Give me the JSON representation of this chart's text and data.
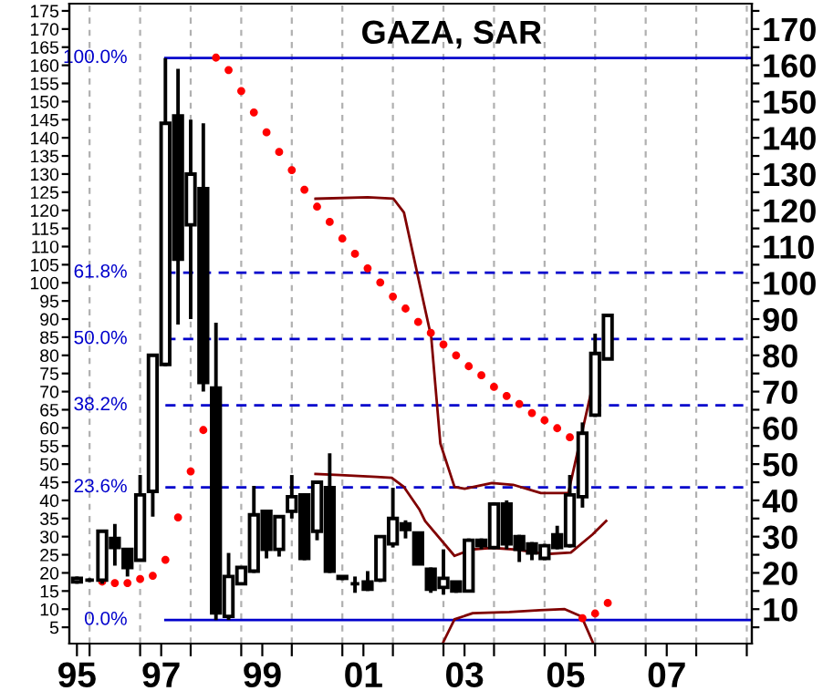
{
  "chart_data": {
    "type": "candlestick",
    "title": "GAZA, SAR",
    "x": [
      "1995-10",
      "1996-01",
      "1996-04",
      "1996-07",
      "1996-10",
      "1997-01",
      "1997-04",
      "1997-07",
      "1997-10",
      "1998-01",
      "1998-04",
      "1998-07",
      "1998-10",
      "1999-01",
      "1999-04",
      "1999-07",
      "1999-10",
      "2000-01",
      "2000-04",
      "2000-07",
      "2000-10",
      "2001-01",
      "2001-04",
      "2001-07",
      "2001-10",
      "2002-01",
      "2002-04",
      "2002-07",
      "2002-10",
      "2003-01",
      "2003-04",
      "2003-07",
      "2003-10",
      "2004-01",
      "2004-04",
      "2004-07",
      "2004-10",
      "2005-01",
      "2005-04",
      "2005-07",
      "2005-10",
      "2006-01",
      "2006-04"
    ],
    "ohlc": [
      [
        17.5,
        19,
        17,
        18.5
      ],
      [
        18,
        18.5,
        17.5,
        18
      ],
      [
        18,
        31.5,
        17,
        31.5
      ],
      [
        29.5,
        33.5,
        22,
        27
      ],
      [
        26.5,
        26.5,
        19,
        21.5
      ],
      [
        23.5,
        47,
        23.5,
        41.5
      ],
      [
        42.5,
        80,
        35.5,
        80
      ],
      [
        77.5,
        162,
        77,
        144
      ],
      [
        146,
        159,
        88.5,
        106.5
      ],
      [
        116,
        145,
        90,
        130
      ],
      [
        126,
        144,
        70,
        72.5
      ],
      [
        71,
        89,
        7,
        9
      ],
      [
        8,
        25.5,
        7,
        19
      ],
      [
        17,
        21.5,
        17,
        21.5
      ],
      [
        20.5,
        44,
        20,
        36
      ],
      [
        37,
        37,
        24,
        26.5
      ],
      [
        26.5,
        35.5,
        24.5,
        35.5
      ],
      [
        37,
        47,
        35,
        41
      ],
      [
        41.5,
        42,
        23.5,
        24
      ],
      [
        31.5,
        45.5,
        29,
        45
      ],
      [
        43.5,
        53,
        20,
        20.5
      ],
      [
        19,
        19,
        18,
        18.5
      ],
      [
        17,
        19,
        14.5,
        17
      ],
      [
        17.5,
        20.5,
        15,
        15.5
      ],
      [
        18,
        30,
        17.5,
        30
      ],
      [
        28,
        43.5,
        27,
        35
      ],
      [
        33.5,
        34.5,
        29.5,
        32
      ],
      [
        31,
        31,
        22.5,
        22.5
      ],
      [
        21,
        21.5,
        14.5,
        15.5
      ],
      [
        16,
        26.5,
        14,
        18.5
      ],
      [
        17.5,
        17.5,
        14.5,
        15
      ],
      [
        15,
        29.5,
        15,
        29
      ],
      [
        29,
        29.5,
        26.5,
        27.5
      ],
      [
        27,
        39.5,
        26.5,
        39
      ],
      [
        39,
        40,
        26.5,
        28
      ],
      [
        30,
        30.5,
        23,
        26.5
      ],
      [
        28,
        28.5,
        23.5,
        25.5
      ],
      [
        24,
        28,
        23.5,
        27.5
      ],
      [
        30.5,
        33,
        26.5,
        27
      ],
      [
        27.5,
        47,
        27,
        41.5
      ],
      [
        41,
        61.5,
        38,
        58.5
      ],
      [
        63.5,
        86,
        63,
        80.5
      ],
      [
        79,
        91,
        79,
        91
      ]
    ],
    "series": [
      {
        "type": "scatter",
        "color": "#ff0000",
        "marker": "circle",
        "x": [
          "1996-04",
          "1996-07",
          "1996-10",
          "1997-01",
          "1997-04",
          "1997-07",
          "1997-10",
          "1998-01",
          "1998-04",
          "1998-07",
          "1998-10",
          "1999-01",
          "1999-04",
          "1999-07",
          "1999-10",
          "2000-01",
          "2000-04",
          "2000-07",
          "2000-10",
          "2001-01",
          "2001-04",
          "2001-07",
          "2001-10",
          "2002-01",
          "2002-04",
          "2002-07",
          "2002-10",
          "2003-01",
          "2003-04",
          "2003-07",
          "2003-10",
          "2004-01",
          "2004-04",
          "2004-07",
          "2004-10",
          "2005-01",
          "2005-04",
          "2005-07",
          "2005-10",
          "2006-01",
          "2006-04"
        ],
        "values": [
          17.6,
          17.2,
          17.2,
          18.3,
          19.2,
          23.6,
          35.3,
          48,
          59.4,
          162.1,
          158.7,
          152.9,
          147,
          141.5,
          136.1,
          131.1,
          125.7,
          121,
          116.8,
          112.2,
          108,
          104,
          100.1,
          96.2,
          92.9,
          89.2,
          86.2,
          83,
          80,
          77,
          74.5,
          71.3,
          68.8,
          66.6,
          64.1,
          62.1,
          59.9,
          57.4,
          7.5,
          8.8,
          11.7
        ]
      },
      {
        "type": "line",
        "color": "#800000",
        "x": [
          "2000-06-20",
          "2001-07",
          "2002-01-05",
          "2002-03-20",
          "2002-10-04",
          "2002-12-09",
          "2003-03-20",
          "2003-06-02",
          "2003-12-16",
          "2004-05-17",
          "2004-12-05",
          "2005-06-20",
          "2005-12-23"
        ],
        "values": [
          123.2,
          123.6,
          123.2,
          119.4,
          85,
          55.7,
          43.7,
          43.2,
          44.8,
          44.3,
          42,
          42,
          73.3
        ]
      },
      {
        "type": "line",
        "color": "#800000",
        "x": [
          "2000-06-20",
          "2000-12-16",
          "2001-09-05",
          "2001-12-23",
          "2002-03-20",
          "2002-07-08",
          "2002-08-21",
          "2003-03-20",
          "2003-07-15",
          "2003-12-16",
          "2004-06-09",
          "2005-01-15",
          "2005-07-08",
          "2005-12-13",
          "2006-03-20"
        ],
        "values": [
          47.3,
          47,
          46.5,
          46.2,
          43.7,
          37.6,
          34.3,
          24.7,
          26.4,
          26.9,
          26.4,
          25.2,
          25.6,
          30.6,
          34.3
        ]
      },
      {
        "type": "line",
        "color": "#800000",
        "x": [
          "2003-01",
          "2003-03-20",
          "2003-07-30",
          "2004-04-19",
          "2004-11-25",
          "2005-05-25",
          "2005-09-24",
          "2005-12-13"
        ],
        "values": [
          1,
          7.2,
          8.9,
          9.2,
          9.7,
          10,
          8,
          1
        ]
      }
    ],
    "ref_lines": [
      {
        "axis": "y",
        "value": 162,
        "color": "#0000cc",
        "line_style": "solid"
      },
      {
        "axis": "y",
        "value": 102.8,
        "color": "#0000cc",
        "line_style": "dashed"
      },
      {
        "axis": "y",
        "value": 84.5,
        "color": "#0000cc",
        "line_style": "dashed"
      },
      {
        "axis": "y",
        "value": 66.2,
        "color": "#0000cc",
        "line_style": "dashed"
      },
      {
        "axis": "y",
        "value": 43.6,
        "color": "#0000cc",
        "line_style": "dashed"
      },
      {
        "axis": "y",
        "value": 7,
        "color": "#0000cc",
        "line_style": "solid"
      }
    ],
    "annotations": [
      {
        "text": "100.0%",
        "x": "1997-07",
        "y": 162
      },
      {
        "text": "61.8%",
        "x": "1997-07",
        "y": 102.8
      },
      {
        "text": "50.0%",
        "x": "1997-07",
        "y": 84.5
      },
      {
        "text": "38.2%",
        "x": "1997-07",
        "y": 66.2
      },
      {
        "text": "23.6%",
        "x": "1997-07",
        "y": 43.6
      },
      {
        "text": "0.0%",
        "x": "1997-07",
        "y": 7
      }
    ],
    "xlim": [
      "1995-08-07",
      "2009-02-07"
    ],
    "xticks": [
      {
        "value": "1996",
        "label": null
      },
      {
        "value": "1997",
        "label": null
      },
      {
        "value": "1998",
        "label": null
      },
      {
        "value": "1999",
        "label": null
      },
      {
        "value": "2000",
        "label": null
      },
      {
        "value": "2001",
        "label": null
      },
      {
        "value": "2002",
        "label": null
      },
      {
        "value": "2003",
        "label": null
      },
      {
        "value": "2004",
        "label": null
      },
      {
        "value": "2005",
        "label": null
      },
      {
        "value": "2006",
        "label": null
      },
      {
        "value": "2007",
        "label": null
      },
      {
        "value": "2008",
        "label": null
      },
      {
        "value": "2009",
        "label": null
      },
      {
        "value": "1995-10",
        "label": "95"
      },
      {
        "value": "1997-06",
        "label": "97"
      },
      {
        "value": "1999-06",
        "label": "99"
      },
      {
        "value": "2001-06",
        "label": "01"
      },
      {
        "value": "2003-06",
        "label": "03"
      },
      {
        "value": "2005-06",
        "label": "05"
      },
      {
        "value": "2007-06",
        "label": "07"
      }
    ],
    "ylim": [
      0.5,
      177
    ],
    "yticks": [
      5,
      10,
      15,
      20,
      25,
      30,
      35,
      40,
      45,
      50,
      55,
      60,
      65,
      70,
      75,
      80,
      85,
      90,
      95,
      100,
      105,
      110,
      115,
      120,
      125,
      130,
      135,
      140,
      145,
      150,
      155,
      160,
      165,
      170,
      175
    ],
    "y2lim": [
      0.5,
      177
    ],
    "y2ticks": [
      {
        "value": 5,
        "label": null
      },
      10,
      {
        "value": 15,
        "label": null
      },
      20,
      {
        "value": 25,
        "label": null
      },
      30,
      {
        "value": 35,
        "label": null
      },
      40,
      {
        "value": 45,
        "label": null
      },
      50,
      {
        "value": 55,
        "label": null
      },
      60,
      {
        "value": 65,
        "label": null
      },
      70,
      {
        "value": 75,
        "label": null
      },
      80,
      {
        "value": 85,
        "label": null
      },
      90,
      {
        "value": 95,
        "label": null
      },
      100,
      {
        "value": 105,
        "label": null
      },
      110,
      {
        "value": 115,
        "label": null
      },
      120,
      {
        "value": 125,
        "label": null
      },
      130,
      {
        "value": 135,
        "label": null
      },
      140,
      {
        "value": 145,
        "label": null
      },
      150,
      {
        "value": 155,
        "label": null
      },
      160,
      {
        "value": 165,
        "label": null
      },
      170,
      {
        "value": 175,
        "label": null
      }
    ],
    "grid": "x"
  }
}
